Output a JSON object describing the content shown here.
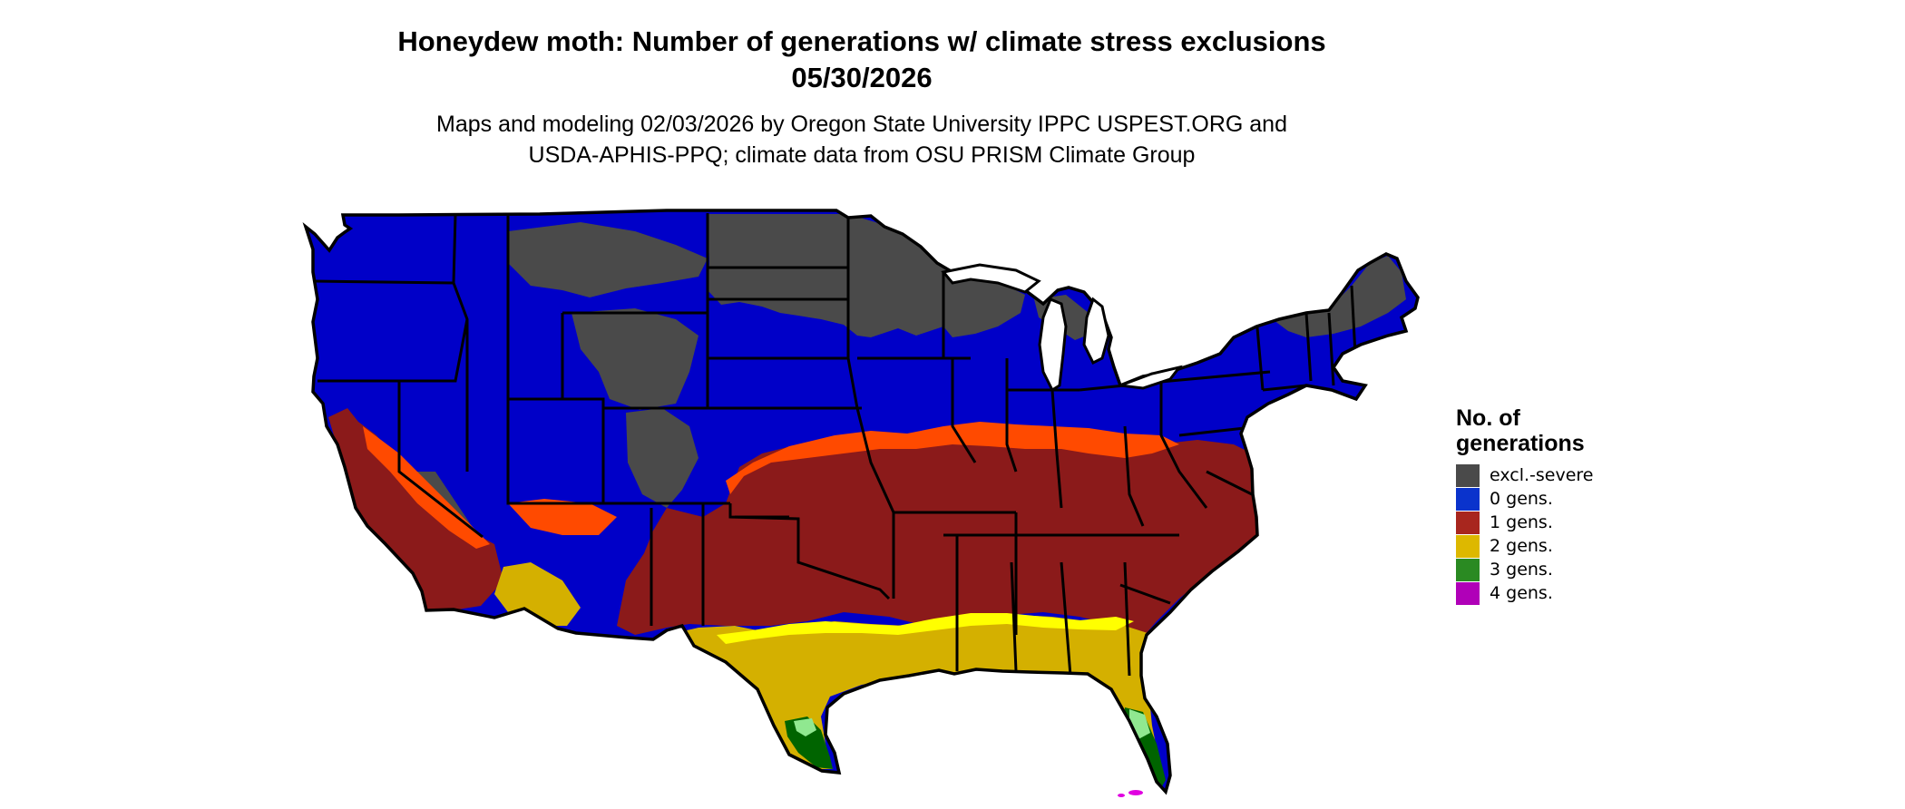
{
  "title": {
    "line1": "Honeydew moth: Number of generations w/ climate stress exclusions",
    "line2": "05/30/2026"
  },
  "subtitle": {
    "line1": "Maps and modeling 02/03/2026 by Oregon State University IPPC USPEST.ORG and",
    "line2": "USDA-APHIS-PPQ; climate data from OSU PRISM Climate Group"
  },
  "legend": {
    "title_line1": "No. of",
    "title_line2": "generations",
    "items": [
      {
        "label": "excl.-severe",
        "color": "#4a4a4a"
      },
      {
        "label": "0 gens.",
        "color": "#0a33cc"
      },
      {
        "label": "1 gens.",
        "color": "#a8261e"
      },
      {
        "label": "2 gens.",
        "color": "#ddb800"
      },
      {
        "label": "3 gens.",
        "color": "#2a8a22"
      },
      {
        "label": "4 gens.",
        "color": "#b000b8"
      }
    ]
  },
  "map": {
    "region": "contiguous-united-states",
    "zone_colors": {
      "excl_severe": "#4a4a4a",
      "zero": "#0000c8",
      "orange_band": "#ff4a00",
      "one": "#8b1a1a",
      "two": "#d4b000",
      "two_bright": "#ffff00",
      "three": "#006400",
      "three_light": "#90e890",
      "four": "#e000e0",
      "border": "#000000"
    }
  }
}
